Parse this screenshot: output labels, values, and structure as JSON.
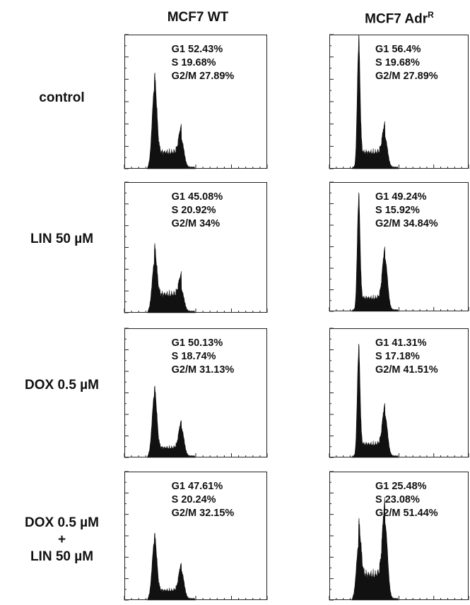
{
  "columns": [
    {
      "label": "MCF7 WT",
      "sup": ""
    },
    {
      "label": "MCF7 Adr",
      "sup": "R"
    }
  ],
  "rows": [
    {
      "lines": [
        "control"
      ]
    },
    {
      "lines": [
        "LIN 50 µM"
      ]
    },
    {
      "lines": [
        "DOX 0.5 µM"
      ]
    },
    {
      "lines": [
        "DOX 0.5 µM",
        "+",
        "LIN 50 µM"
      ]
    }
  ],
  "chart_data": [
    {
      "type": "area",
      "column": "MCF7 WT",
      "row": "control",
      "g1": "G1 52.43%",
      "s": "S 19.68%",
      "g2m": "G2/M 27.89%",
      "peaks": {
        "g1": 0.58,
        "g2m": 0.2,
        "s_plateau": 0.12
      }
    },
    {
      "type": "area",
      "column": "MCF7 AdrR",
      "row": "control",
      "g1": "G1 56.4%",
      "s": "S 19.68%",
      "g2m": "G2/M 27.89%",
      "peaks": {
        "g1": 0.88,
        "g2m": 0.22,
        "s_plateau": 0.12
      }
    },
    {
      "type": "area",
      "column": "MCF7 WT",
      "row": "LIN 50 µM",
      "g1": "G1 45.08%",
      "s": "S 20.92%",
      "g2m": "G2/M 34%",
      "peaks": {
        "g1": 0.37,
        "g2m": 0.16,
        "s_plateau": 0.14
      }
    },
    {
      "type": "area",
      "column": "MCF7 AdrR",
      "row": "LIN 50 µM",
      "g1": "G1 49.24%",
      "s": "S 15.92%",
      "g2m": "G2/M 34.84%",
      "peaks": {
        "g1": 0.82,
        "g2m": 0.39,
        "s_plateau": 0.1
      }
    },
    {
      "type": "area",
      "column": "MCF7 WT",
      "row": "DOX 0.5 µM",
      "g1": "G1 50.13%",
      "s": "S 18.74%",
      "g2m": "G2/M 31.13%",
      "peaks": {
        "g1": 0.47,
        "g2m": 0.21,
        "s_plateau": 0.07
      }
    },
    {
      "type": "area",
      "column": "MCF7 AdrR",
      "row": "DOX 0.5 µM",
      "g1": "G1 41.31%",
      "s": "S 17.18%",
      "g2m": "G2/M 41.51%",
      "peaks": {
        "g1": 0.78,
        "g2m": 0.31,
        "s_plateau": 0.1
      }
    },
    {
      "type": "area",
      "column": "MCF7 WT",
      "row": "DOX 0.5 µM + LIN 50 µM",
      "g1": "G1 47.61%",
      "s": "S 20.24%",
      "g2m": "G2/M 32.15%",
      "peaks": {
        "g1": 0.44,
        "g2m": 0.21,
        "s_plateau": 0.07
      }
    },
    {
      "type": "area",
      "column": "MCF7 AdrR",
      "row": "DOX 0.5 µM + LIN 50 µM",
      "g1": "G1 25.48%",
      "s": "S 23.08%",
      "g2m": "G2/M 51.44%",
      "peaks": {
        "g1": 0.41,
        "g2m": 0.58,
        "s_plateau": 0.2
      }
    }
  ]
}
